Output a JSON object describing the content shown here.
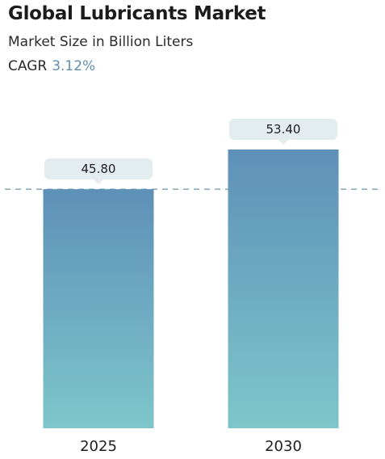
{
  "header": {
    "title": "Global Lubricants Market",
    "subtitle": "Market Size in Billion Liters",
    "cagr_label": "CAGR",
    "cagr_value": "3.12%"
  },
  "colors": {
    "bar_top": "#5e90b8",
    "bar_bottom": "#7ec6ca",
    "label_box": "#e3ecef",
    "reference_line": "#6f97ae",
    "cagr_accent": "#5f8fb0"
  },
  "chart_data": {
    "type": "bar",
    "categories": [
      "2025",
      "2030"
    ],
    "values": [
      45.8,
      53.4
    ],
    "value_labels": [
      "45.80",
      "53.40"
    ],
    "reference_line": {
      "value": 45.8,
      "style": "dashed"
    },
    "ylim": [
      0,
      53.4
    ],
    "grid": false,
    "legend": "none"
  }
}
